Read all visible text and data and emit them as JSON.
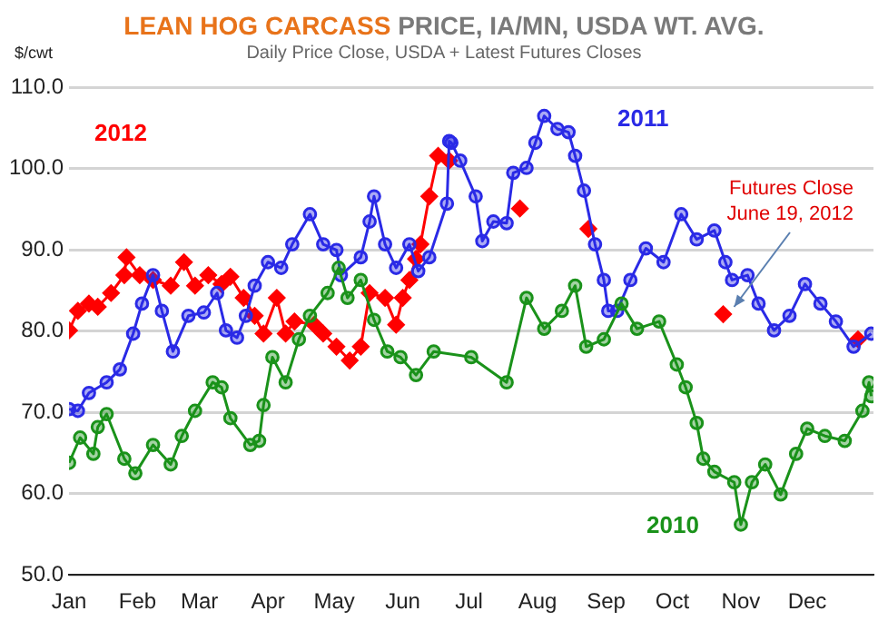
{
  "chart_data": {
    "type": "line",
    "title": "LEAN HOG CARCASS PRICE, IA/MN, USDA WT. AVG.",
    "subtitle": "Daily Price Close, USDA + Latest Futures Closes",
    "ylabel": "$/cwt",
    "xlim": [
      "--01-01",
      "--12-31"
    ],
    "xticks": [
      {
        "value": "--01-01",
        "label": "Jan"
      },
      {
        "value": "--02-01",
        "label": "Feb"
      },
      {
        "value": "--03-01",
        "label": "Mar"
      },
      {
        "value": "--04-01",
        "label": "Apr"
      },
      {
        "value": "--05-01",
        "label": "May"
      },
      {
        "value": "--06-01",
        "label": "Jun"
      },
      {
        "value": "--07-01",
        "label": "Jul"
      },
      {
        "value": "--08-01",
        "label": "Aug"
      },
      {
        "value": "--09-01",
        "label": "Sep"
      },
      {
        "value": "--10-01",
        "label": "Oct"
      },
      {
        "value": "--11-01",
        "label": "Nov"
      },
      {
        "value": "--12-01",
        "label": "Dec"
      }
    ],
    "ylim": [
      50,
      110
    ],
    "yticks": [
      {
        "value": 50,
        "label": "50.0"
      },
      {
        "value": 60,
        "label": "60.0"
      },
      {
        "value": 70,
        "label": "70.0"
      },
      {
        "value": 80,
        "label": "80.0"
      },
      {
        "value": 90,
        "label": "90.0"
      },
      {
        "value": 100,
        "label": "100.0"
      },
      {
        "value": 110,
        "label": "110.0"
      }
    ],
    "grid": "y",
    "legend": false,
    "line_style": "solid",
    "series": [
      {
        "name": "2010",
        "color": "#1a921a",
        "marker": "circle",
        "x": [
          "--01-01",
          "--01-06",
          "--01-12",
          "--01-14",
          "--01-18",
          "--01-26",
          "--01-31",
          "--02-08",
          "--02-16",
          "--02-21",
          "--02-27",
          "--03-07",
          "--03-11",
          "--03-15",
          "--03-24",
          "--03-28",
          "--03-30",
          "--04-03",
          "--04-09",
          "--04-15",
          "--04-20",
          "--04-28",
          "--05-03",
          "--05-07",
          "--05-13",
          "--05-19",
          "--05-25",
          "--05-31",
          "--06-07",
          "--06-15",
          "--07-02",
          "--07-18",
          "--07-27",
          "--08-04",
          "--08-12",
          "--08-18",
          "--08-23",
          "--08-31",
          "--09-08",
          "--09-15",
          "--09-25",
          "--10-03",
          "--10-07",
          "--10-12",
          "--10-15",
          "--10-20",
          "--10-29",
          "--11-01",
          "--11-06",
          "--11-12",
          "--11-19",
          "--11-26",
          "--12-01",
          "--12-09",
          "--12-18",
          "--12-26",
          "--12-29",
          "--12-30"
        ],
        "values": [
          63.8,
          66.9,
          64.9,
          68.2,
          69.8,
          64.3,
          62.5,
          66,
          63.6,
          67.1,
          70.2,
          73.7,
          73.1,
          69.3,
          66,
          66.5,
          70.9,
          76.8,
          73.7,
          79,
          81.9,
          84.7,
          87.8,
          84.1,
          86.3,
          81.4,
          77.5,
          76.8,
          74.6,
          77.5,
          76.8,
          73.7,
          84.1,
          80.3,
          82.5,
          85.6,
          78.1,
          79,
          83.4,
          80.3,
          81.2,
          75.9,
          73.1,
          68.7,
          64.3,
          62.7,
          61.4,
          56.2,
          61.4,
          63.6,
          59.9,
          64.9,
          68,
          67.1,
          66.5,
          70.2,
          73.7,
          72
        ]
      },
      {
        "name": "2011",
        "color": "#2a2ae6",
        "marker": "circle",
        "x": [
          "--01-01",
          "--01-05",
          "--01-10",
          "--01-18",
          "--01-24",
          "--01-30",
          "--02-03",
          "--02-08",
          "--02-12",
          "--02-17",
          "--02-24",
          "--03-03",
          "--03-09",
          "--03-13",
          "--03-18",
          "--03-22",
          "--03-26",
          "--04-01",
          "--04-07",
          "--04-12",
          "--04-20",
          "--04-26",
          "--05-02",
          "--05-04",
          "--05-13",
          "--05-17",
          "--05-19",
          "--05-24",
          "--05-29",
          "--06-04",
          "--06-08",
          "--06-13",
          "--06-21",
          "--06-22",
          "--06-23",
          "--06-27",
          "--07-04",
          "--07-07",
          "--07-12",
          "--07-18",
          "--07-21",
          "--07-27",
          "--07-31",
          "--08-04",
          "--08-10",
          "--08-15",
          "--08-18",
          "--08-22",
          "--08-27",
          "--08-31",
          "--09-02",
          "--09-06",
          "--09-12",
          "--09-19",
          "--09-27",
          "--10-05",
          "--10-12",
          "--10-20",
          "--10-25",
          "--10-28",
          "--11-04",
          "--11-09",
          "--11-16",
          "--11-23",
          "--11-30",
          "--12-07",
          "--12-14",
          "--12-22",
          "--12-30"
        ],
        "values": [
          70.4,
          70.2,
          72.4,
          73.7,
          75.3,
          79.7,
          83.4,
          86.9,
          82.5,
          77.5,
          81.9,
          82.3,
          84.7,
          80.1,
          79.2,
          81.9,
          85.6,
          88.5,
          87.8,
          90.7,
          94.4,
          90.7,
          90,
          86.9,
          89.1,
          93.5,
          96.6,
          90.7,
          87.8,
          90.7,
          87.4,
          89.1,
          95.7,
          103.4,
          103.2,
          101,
          96.6,
          91.1,
          93.5,
          93.3,
          99.5,
          100.1,
          103.2,
          106.5,
          104.9,
          104.5,
          101.6,
          97.3,
          90.7,
          86.3,
          82.5,
          82.5,
          86.3,
          90.2,
          88.5,
          94.4,
          91.3,
          92.4,
          88.5,
          86.3,
          86.9,
          83.4,
          80.1,
          81.9,
          85.8,
          83.4,
          81.2,
          78.1,
          79.7
        ]
      },
      {
        "name": "2012",
        "color": "#ff0000",
        "marker": "diamond",
        "x": [
          "--01-01",
          "--01-05",
          "--01-10",
          "--01-14",
          "--01-20",
          "--01-26",
          "--01-27",
          "--02-02",
          "--02-08",
          "--02-16",
          "--02-22",
          "--02-27",
          "--03-05",
          "--03-11",
          "--03-15",
          "--03-21",
          "--03-26",
          "--03-30",
          "--04-05",
          "--04-09",
          "--04-13",
          "--04-22",
          "--04-26",
          "--05-02",
          "--05-08",
          "--05-13",
          "--05-17",
          "--05-24",
          "--05-29",
          "--06-01",
          "--06-04",
          "--06-07",
          "--06-09",
          "--06-13",
          "--06-17",
          "--06-22"
        ],
        "values": [
          80.1,
          82.5,
          83.4,
          83,
          84.7,
          86.9,
          89.1,
          86.9,
          86.3,
          85.6,
          88.5,
          85.6,
          86.9,
          85.8,
          86.7,
          84.1,
          81.9,
          79.7,
          84.1,
          79.7,
          81.2,
          80.8,
          79.7,
          78.1,
          76.4,
          78.1,
          84.7,
          84.1,
          80.8,
          84.1,
          86.3,
          88.9,
          90.7,
          96.6,
          101.6,
          101
        ]
      },
      {
        "type": "scatter",
        "color": "#ff0000",
        "marker": "diamond",
        "x": [
          "--07-24",
          "--08-24",
          "--10-24",
          "--12-24"
        ],
        "values": [
          95.1,
          92.6,
          82.1,
          79
        ]
      }
    ],
    "annotations": [
      {
        "text": "Futures Close June 19, 2012",
        "x": "--10-24",
        "y": 82.1
      }
    ]
  }
}
